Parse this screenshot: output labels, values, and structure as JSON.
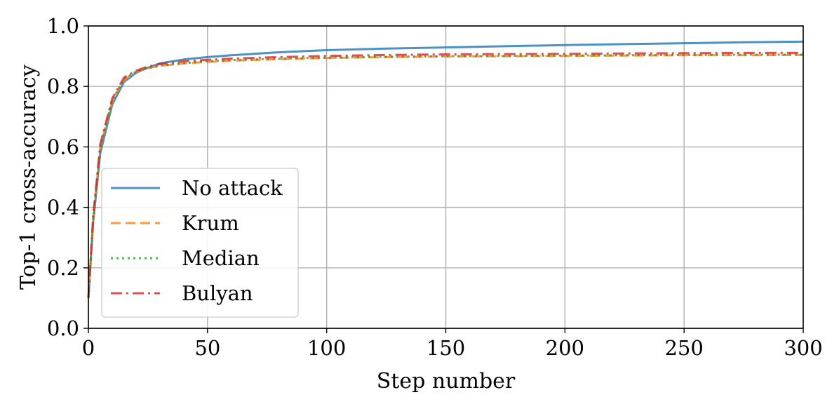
{
  "chart_data": {
    "type": "line",
    "title": "",
    "xlabel": "Step number",
    "ylabel": "Top-1 cross-accuracy",
    "xlim": [
      0,
      300
    ],
    "ylim": [
      0.0,
      1.0
    ],
    "xticks": [
      0,
      50,
      100,
      150,
      200,
      250,
      300
    ],
    "yticks": [
      0.0,
      0.2,
      0.4,
      0.6,
      0.8,
      1.0
    ],
    "xtick_labels": [
      "0",
      "50",
      "100",
      "150",
      "200",
      "250",
      "300"
    ],
    "ytick_labels": [
      "0.0",
      "0.2",
      "0.4",
      "0.6",
      "0.8",
      "1.0"
    ],
    "grid": true,
    "legend_position": "center-left",
    "series": [
      {
        "name": "No attack",
        "color": "#1f77b4",
        "style": "solid",
        "x": [
          0,
          2,
          5,
          10,
          15,
          20,
          25,
          30,
          40,
          50,
          60,
          80,
          100,
          125,
          150,
          175,
          200,
          225,
          250,
          275,
          300
        ],
        "y": [
          0.1,
          0.35,
          0.58,
          0.74,
          0.815,
          0.845,
          0.862,
          0.876,
          0.889,
          0.897,
          0.903,
          0.913,
          0.92,
          0.925,
          0.929,
          0.933,
          0.937,
          0.94,
          0.943,
          0.946,
          0.948
        ]
      },
      {
        "name": "Krum",
        "color": "#ff7f0e",
        "style": "dashed",
        "x": [
          0,
          2,
          5,
          10,
          15,
          20,
          25,
          30,
          40,
          50,
          60,
          80,
          100,
          125,
          150,
          175,
          200,
          225,
          250,
          275,
          300
        ],
        "y": [
          0.1,
          0.36,
          0.6,
          0.75,
          0.822,
          0.848,
          0.86,
          0.868,
          0.876,
          0.881,
          0.885,
          0.89,
          0.894,
          0.897,
          0.899,
          0.9,
          0.901,
          0.902,
          0.903,
          0.903,
          0.904
        ]
      },
      {
        "name": "Median",
        "color": "#2ca02c",
        "style": "dotted",
        "x": [
          0,
          2,
          5,
          10,
          15,
          20,
          25,
          30,
          40,
          50,
          60,
          80,
          100,
          125,
          150,
          175,
          200,
          225,
          250,
          275,
          300
        ],
        "y": [
          0.1,
          0.36,
          0.6,
          0.755,
          0.825,
          0.849,
          0.861,
          0.869,
          0.877,
          0.883,
          0.887,
          0.892,
          0.895,
          0.898,
          0.9,
          0.901,
          0.902,
          0.903,
          0.904,
          0.905,
          0.905
        ]
      },
      {
        "name": "Bulyan",
        "color": "#d62728",
        "style": "dashdot",
        "x": [
          0,
          2,
          5,
          10,
          15,
          20,
          25,
          30,
          40,
          50,
          60,
          80,
          100,
          125,
          150,
          175,
          200,
          225,
          250,
          275,
          300
        ],
        "y": [
          0.1,
          0.37,
          0.61,
          0.76,
          0.83,
          0.852,
          0.866,
          0.874,
          0.883,
          0.888,
          0.892,
          0.897,
          0.901,
          0.904,
          0.906,
          0.907,
          0.908,
          0.909,
          0.91,
          0.911,
          0.911
        ]
      }
    ]
  }
}
